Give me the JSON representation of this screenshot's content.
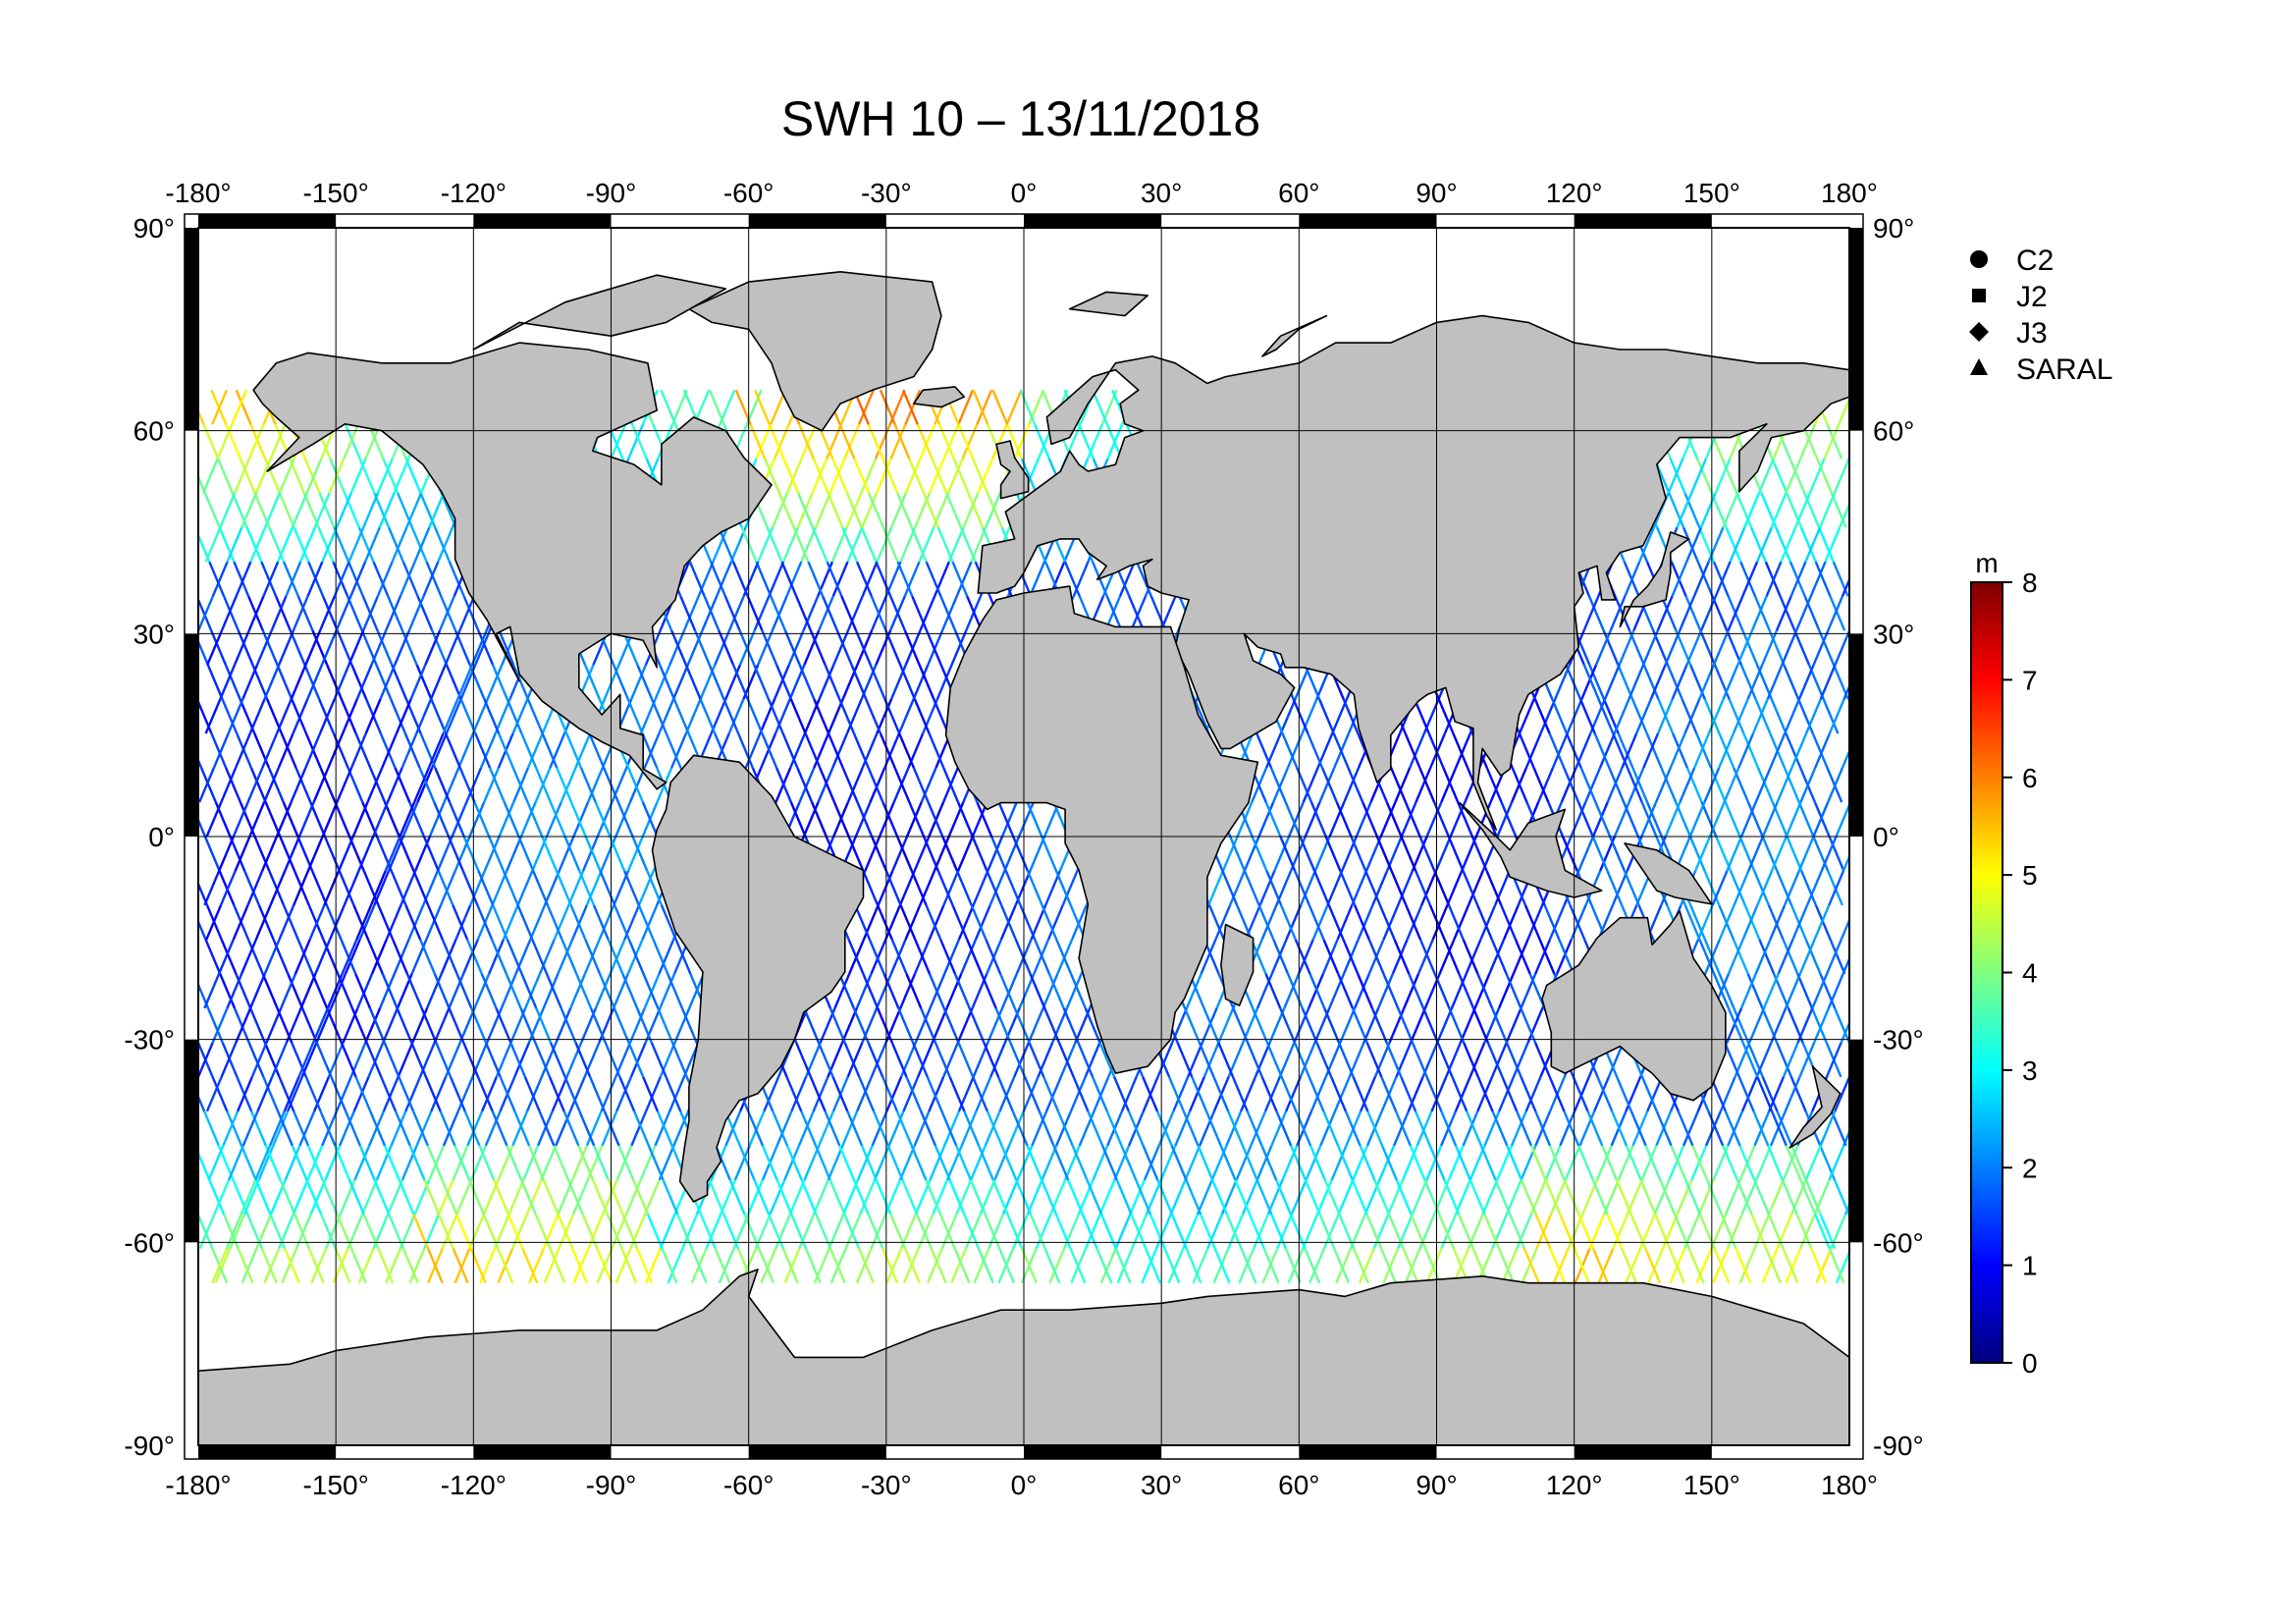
{
  "title": "SWH 10 – 13/11/2018",
  "map": {
    "projection": "equirectangular",
    "lon_range": [
      -180,
      180
    ],
    "lat_range": [
      -90,
      90
    ],
    "land_color": "#c0c0c0",
    "coast_color": "#000000",
    "grid": true,
    "lon_ticks": [
      "-180°",
      "-150°",
      "-120°",
      "-90°",
      "-60°",
      "-30°",
      "0°",
      "30°",
      "60°",
      "90°",
      "120°",
      "150°",
      "180°"
    ],
    "lat_ticks": [
      "90°",
      "60°",
      "30°",
      "0°",
      "-30°",
      "-60°",
      "-90°"
    ]
  },
  "legend": {
    "placement": "top-right",
    "items": [
      {
        "label": "C2",
        "marker": "circle"
      },
      {
        "label": "J2",
        "marker": "square"
      },
      {
        "label": "J3",
        "marker": "diamond"
      },
      {
        "label": "SARAL",
        "marker": "triangle"
      }
    ]
  },
  "colorbar": {
    "unit": "m",
    "min": 0,
    "max": 8,
    "ticks": [
      "0",
      "1",
      "2",
      "3",
      "4",
      "5",
      "6",
      "7",
      "8"
    ],
    "colormap": [
      "#00007f",
      "#0000ff",
      "#007fff",
      "#00ffff",
      "#7fff7f",
      "#ffff00",
      "#ff7f00",
      "#ff0000",
      "#7f0000"
    ]
  },
  "chart_data": {
    "type": "map",
    "title": "SWH 10 – 13/11/2018",
    "variable_unit": "m",
    "value_range": [
      0,
      8
    ],
    "series": [
      "C2",
      "J2",
      "J3",
      "SARAL"
    ],
    "track_lat_limit": [
      -66,
      66
    ]
  }
}
